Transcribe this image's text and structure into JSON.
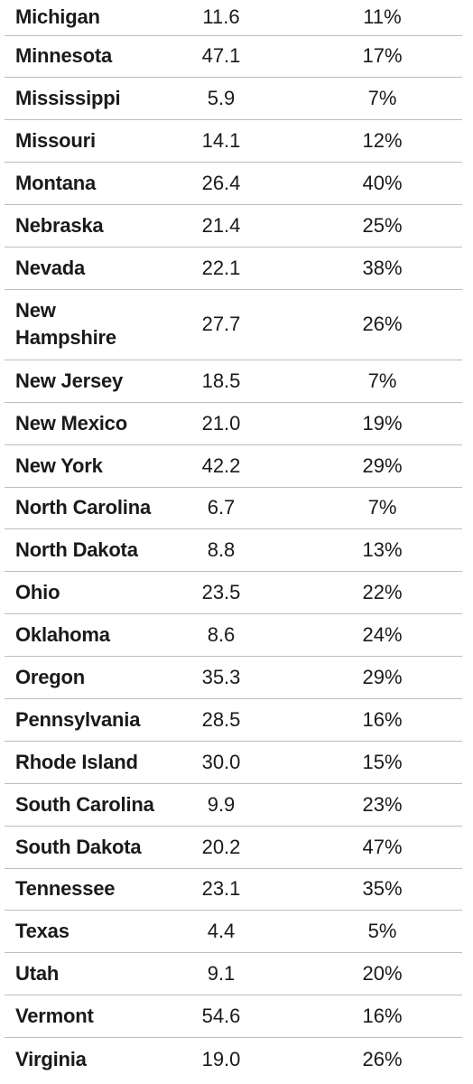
{
  "rows": [
    {
      "state": "Michigan",
      "value": "11.6",
      "pct": "11%"
    },
    {
      "state": "Minnesota",
      "value": "47.1",
      "pct": "17%"
    },
    {
      "state": "Mississippi",
      "value": "5.9",
      "pct": "7%"
    },
    {
      "state": "Missouri",
      "value": "14.1",
      "pct": "12%"
    },
    {
      "state": "Montana",
      "value": "26.4",
      "pct": "40%"
    },
    {
      "state": "Nebraska",
      "value": "21.4",
      "pct": "25%"
    },
    {
      "state": "Nevada",
      "value": "22.1",
      "pct": "38%"
    },
    {
      "state": "New Hampshire",
      "value": "27.7",
      "pct": "26%"
    },
    {
      "state": "New Jersey",
      "value": "18.5",
      "pct": "7%"
    },
    {
      "state": "New Mexico",
      "value": "21.0",
      "pct": "19%"
    },
    {
      "state": "New York",
      "value": "42.2",
      "pct": "29%"
    },
    {
      "state": "North Carolina",
      "value": "6.7",
      "pct": "7%"
    },
    {
      "state": "North Dakota",
      "value": "8.8",
      "pct": "13%"
    },
    {
      "state": "Ohio",
      "value": "23.5",
      "pct": "22%"
    },
    {
      "state": "Oklahoma",
      "value": "8.6",
      "pct": "24%"
    },
    {
      "state": "Oregon",
      "value": "35.3",
      "pct": "29%"
    },
    {
      "state": "Pennsylvania",
      "value": "28.5",
      "pct": "16%"
    },
    {
      "state": "Rhode Island",
      "value": "30.0",
      "pct": "15%"
    },
    {
      "state": "South Carolina",
      "value": "9.9",
      "pct": "23%"
    },
    {
      "state": "South Dakota",
      "value": "20.2",
      "pct": "47%"
    },
    {
      "state": "Tennessee",
      "value": "23.1",
      "pct": "35%"
    },
    {
      "state": "Texas",
      "value": "4.4",
      "pct": "5%"
    },
    {
      "state": "Utah",
      "value": "9.1",
      "pct": "20%"
    },
    {
      "state": "Vermont",
      "value": "54.6",
      "pct": "16%"
    },
    {
      "state": "Virginia",
      "value": "19.0",
      "pct": "26%"
    }
  ]
}
